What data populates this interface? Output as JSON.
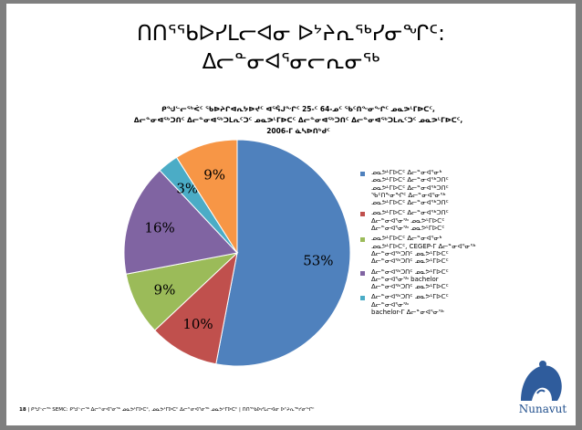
{
  "title_lines": [
    "ᑎᑎᕐᖃᐅᓯᒪᓕᐊᓂ ᐅᔾᔨᕆᖅᓯᓂᖏᑦ:",
    "ᐃᓕᓐᓂᐊᕐᓂᓕᕆᓂᖅ"
  ],
  "subtitle_lines": [
    "ᑭᖑᓪᓕᖅᐹᑦ ᖃᐅᔨᒋᐊᕆᔭᐅᔪᑦ ᐊᕐᕌᒍᖏᑦ 25-ᑦ 64-ᓄᑦ ᖃᑦᑎᖕᓂᖏᑦ ᓄᓇᕗᒻᒥᐅᑕᑦ,",
    "ᐃᓕᓐᓂᐊᖅᑐᑎᑦ ᐃᓕᓐᓂᐊᖅᑐᒪᕆᑦᑐᑦ ᓄᓇᕗᒻᒥᐅᑕᑦ ᐃᓕᓐᓂᐊᖅᑐᑎᑦ ᐃᓕᓐᓂᐊᖅᑐᒪᕆᑦᑐᑦ ᓄᓇᕗᒻᒥᐅᑕᑦ,",
    "2006-ᒥ ᓈᓴᐅᑎᒃᑯᑦ"
  ],
  "chart_data": {
    "type": "pie",
    "slices": [
      {
        "label": "53%",
        "value": 53,
        "color": "#4f81bd"
      },
      {
        "label": "10%",
        "value": 10,
        "color": "#c0504d"
      },
      {
        "label": "9%",
        "value": 9,
        "color": "#9bbb59"
      },
      {
        "label": "16%",
        "value": 16,
        "color": "#8064a2"
      },
      {
        "label": "3%",
        "value": 3,
        "color": "#4bacc6"
      },
      {
        "label": "9%",
        "value": 9,
        "color": "#f79646"
      }
    ]
  },
  "legend": [
    {
      "color": "#4f81bd",
      "lines": [
        "ᓄᓇᕗᒻᒥᐅᑕᑦ ᐃᓕᓐᓂᐊᕐᓂᒃ",
        "ᓄᓇᕗᒻᒥᐅᑕᑦ ᐃᓕᓐᓂᐊᖅᑐᑎᑦ",
        "ᓄᓇᕗᒻᒥᐅᑕᑦ ᐃᓕᓐᓂᐊᖅᑐᑎᑦ",
        "ᖃᑦᑎᖕᓂᖏᑦ ᐃᓕᓐᓂᐊᕐᓂᖅ",
        "ᓄᓇᕗᒻᒥᐅᑕᑦ ᐃᓕᓐᓂᐊᖅᑐᑎᑦ"
      ]
    },
    {
      "color": "#c0504d",
      "lines": [
        "ᓄᓇᕗᒻᒥᐅᑕᑦ ᐃᓕᓐᓂᐊᖅᑐᑎᑦ",
        "ᐃᓕᓐᓂᐊᕐᓂᖅ ᓄᓇᕗᒻᒥᐅᑕᑦ",
        "ᐃᓕᓐᓂᐊᕐᓂᖅ ᓄᓇᕗᒻᒥᐅᑕᑦ"
      ]
    },
    {
      "color": "#9bbb59",
      "lines": [
        "ᓄᓇᕗᒻᒥᐅᑕᑦ ᐃᓕᓐᓂᐊᕐᓂᒃ",
        "ᓄᓇᕗᒻᒥᐅᑕᑦ, CEGEP-ᒥ ᐃᓕᓐᓂᐊᕐᓂᖅ",
        "ᐃᓕᓐᓂᐊᖅᑐᑎᑦ ᓄᓇᕗᒻᒥᐅᑕᑦ",
        "ᐃᓕᓐᓂᐊᖅᑐᑎᑦ ᓄᓇᕗᒻᒥᐅᑕᑦ"
      ]
    },
    {
      "color": "#8064a2",
      "lines": [
        "ᐃᓕᓐᓂᐊᖅᑐᑎᑦ ᓄᓇᕗᒻᒥᐅᑕᑦ",
        "ᐃᓕᓐᓂᐊᕐᓂᖅ bachelor",
        "ᐃᓕᓐᓂᐊᖅᑐᑎᑦ ᓄᓇᕗᒻᒥᐅᑕᑦ"
      ]
    },
    {
      "color": "#4bacc6",
      "lines": [
        "ᐃᓕᓐᓂᐊᖅᑐᑎᑦ ᓄᓇᕗᒻᒥᐅᑕᑦ",
        "ᐃᓕᓐᓂᐊᕐᓂᖅ",
        "bachelor-ᒥ ᐃᓕᓐᓂᐊᕐᓂᖅ"
      ]
    }
  ],
  "footer": {
    "page": "18",
    "org": "SEMC:",
    "text": "ᑭᖑᓪᓕᖅ SEMC: ᑭᖑᓪᓕᖅ ᐃᓕᓐᓂᐊᕐᓂᖅ ᓄᓇᕗᒻᒥᐅᑕᑦ, ᓄᓇᕗᒻᒥᐅᑕᑦ ᐃᓕᓐᓂᐊᕐᓂᖅ ᓄᓇᕗᒻᒥᐅᑕᑦ | ᑎᑎᕐᖃᐅᓯᒪᓕᐊᓂ ᐅᔾᔨᕆᖅᓯᓂᖏᑦ"
  },
  "logo_text": "Nunavut"
}
